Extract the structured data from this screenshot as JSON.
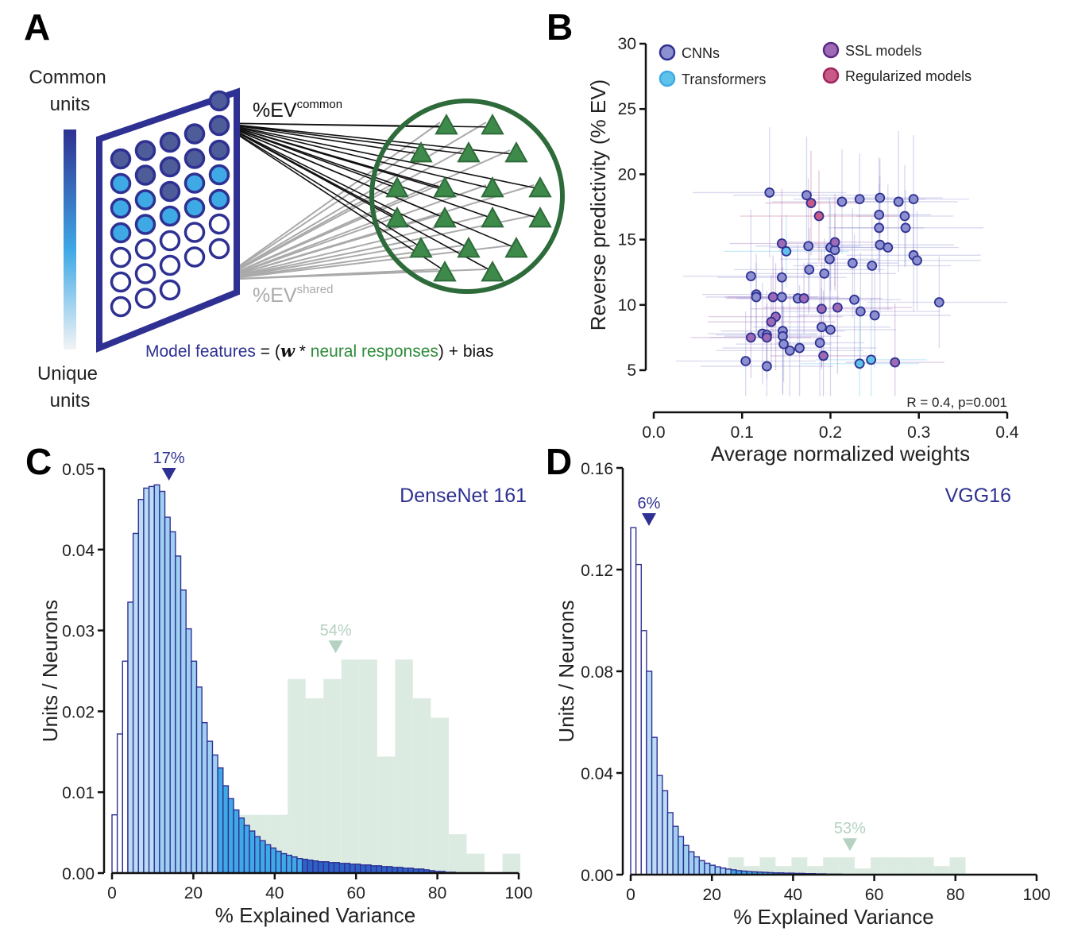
{
  "colors": {
    "navy": "#2e3192",
    "blue_dark": "#2f62c6",
    "blue_mid": "#3fa9e6",
    "blue_light": "#bcdcf6",
    "green": "#2e6b3a",
    "green_fill": "#d6e8dc",
    "green_text": "#b5d2c0",
    "cnn": "#8c8fd0",
    "transformer": "#5fc2ea",
    "ssl": "#9e6ab6",
    "regularized": "#c75a86",
    "gray_line": "#aaaaaa"
  },
  "panel_a": {
    "label": "A",
    "top_label": [
      "Common",
      "units"
    ],
    "bottom_label": [
      "Unique",
      "units"
    ],
    "ev_common": "%EV",
    "ev_common_sup": "common",
    "ev_shared": "%EV",
    "ev_shared_sup": "shared",
    "formula": {
      "model_features": "Model features",
      "equals": " = (",
      "w": "w",
      "star": " * ",
      "neural": "neural responses",
      "rest": ") + bias"
    },
    "unit_grid": [
      [
        "none",
        "none",
        "none",
        "none",
        "dark"
      ],
      [
        "dark",
        "dark",
        "dark",
        "dark",
        "dark"
      ],
      [
        "mid",
        "dark",
        "dark",
        "dark",
        "dark"
      ],
      [
        "mid",
        "mid",
        "dark",
        "mid",
        "mid"
      ],
      [
        "mid",
        "mid",
        "mid",
        "mid",
        "mid"
      ],
      [
        "white",
        "white",
        "white",
        "white",
        "white"
      ],
      [
        "white",
        "white",
        "white",
        "white",
        "white"
      ],
      [
        "white",
        "white",
        "white",
        "none",
        "none"
      ]
    ]
  },
  "chart_data": [
    {
      "panel": "B",
      "type": "scatter",
      "title": "",
      "xlabel": "Average normalized weights",
      "ylabel": "Reverse predictivity (% EV)",
      "xlim": [
        0,
        0.4
      ],
      "ylim": [
        5,
        30
      ],
      "xticks": [
        "0.0",
        "0.1",
        "0.2",
        "0.3",
        "0.4"
      ],
      "yticks": [
        "5",
        "10",
        "15",
        "20",
        "25",
        "30"
      ],
      "annotation": "R = 0.4, p=0.001",
      "legend": [
        {
          "key": "cnn",
          "label": "CNNs"
        },
        {
          "key": "transformer",
          "label": "Transformers"
        },
        {
          "key": "ssl",
          "label": "SSL models"
        },
        {
          "key": "regularized",
          "label": "Regularized models"
        }
      ],
      "series": [
        {
          "name": "CNNs",
          "key": "cnn",
          "points": [
            [
              0.131,
              18.6
            ],
            [
              0.173,
              18.4
            ],
            [
              0.213,
              17.9
            ],
            [
              0.233,
              18.1
            ],
            [
              0.256,
              18.2
            ],
            [
              0.277,
              17.9
            ],
            [
              0.294,
              18.1
            ],
            [
              0.255,
              16.9
            ],
            [
              0.284,
              16.8
            ],
            [
              0.255,
              15.9
            ],
            [
              0.285,
              15.9
            ],
            [
              0.256,
              14.6
            ],
            [
              0.265,
              14.4
            ],
            [
              0.294,
              13.8
            ],
            [
              0.298,
              13.4
            ],
            [
              0.2,
              14.4
            ],
            [
              0.205,
              14.2
            ],
            [
              0.175,
              14.5
            ],
            [
              0.199,
              13.5
            ],
            [
              0.225,
              13.2
            ],
            [
              0.247,
              13.0
            ],
            [
              0.176,
              12.7
            ],
            [
              0.193,
              12.4
            ],
            [
              0.11,
              12.2
            ],
            [
              0.145,
              12.1
            ],
            [
              0.163,
              10.5
            ],
            [
              0.145,
              10.6
            ],
            [
              0.116,
              10.8
            ],
            [
              0.116,
              10.6
            ],
            [
              0.227,
              10.4
            ],
            [
              0.234,
              9.5
            ],
            [
              0.25,
              9.2
            ],
            [
              0.323,
              10.2
            ],
            [
              0.19,
              8.3
            ],
            [
              0.2,
              8.1
            ],
            [
              0.146,
              8.0
            ],
            [
              0.146,
              7.6
            ],
            [
              0.123,
              7.8
            ],
            [
              0.128,
              7.7
            ],
            [
              0.147,
              7.0
            ],
            [
              0.188,
              7.1
            ],
            [
              0.165,
              6.7
            ],
            [
              0.154,
              6.5
            ],
            [
              0.104,
              5.7
            ],
            [
              0.128,
              5.3
            ]
          ]
        },
        {
          "name": "Transformers",
          "key": "transformer",
          "points": [
            [
              0.15,
              14.1
            ],
            [
              0.233,
              5.5
            ],
            [
              0.246,
              5.8
            ]
          ]
        },
        {
          "name": "SSL models",
          "key": "ssl",
          "points": [
            [
              0.145,
              14.7
            ],
            [
              0.205,
              14.8
            ],
            [
              0.135,
              10.6
            ],
            [
              0.17,
              10.5
            ],
            [
              0.208,
              9.8
            ],
            [
              0.19,
              9.7
            ],
            [
              0.138,
              9.1
            ],
            [
              0.133,
              8.7
            ],
            [
              0.11,
              7.5
            ],
            [
              0.128,
              7.5
            ],
            [
              0.192,
              6.1
            ],
            [
              0.273,
              5.6
            ]
          ]
        },
        {
          "name": "Regularized models",
          "key": "regularized",
          "points": [
            [
              0.178,
              17.8
            ],
            [
              0.187,
              16.8
            ]
          ]
        }
      ]
    },
    {
      "panel": "C",
      "type": "bar",
      "title": "DenseNet 161",
      "xlabel": "% Explained Variance",
      "ylabel": "Units / Neurons",
      "xlim": [
        0,
        100
      ],
      "ylim": [
        0,
        0.05
      ],
      "xticks": [
        "0",
        "20",
        "40",
        "60",
        "80",
        "100"
      ],
      "yticks": [
        "0.00",
        "0.01",
        "0.02",
        "0.03",
        "0.04",
        "0.05"
      ],
      "series": [
        {
          "name": "Model units",
          "bin_start": 0,
          "bin_width": 1.3,
          "values": [
            0.0072,
            0.0172,
            0.0262,
            0.0335,
            0.042,
            0.0462,
            0.0476,
            0.0478,
            0.048,
            0.0472,
            0.044,
            0.0422,
            0.0392,
            0.035,
            0.0302,
            0.0262,
            0.023,
            0.0186,
            0.0163,
            0.0146,
            0.013,
            0.0108,
            0.0092,
            0.0078,
            0.0068,
            0.0059,
            0.0052,
            0.0045,
            0.004,
            0.0035,
            0.0031,
            0.0027,
            0.0024,
            0.0022,
            0.002,
            0.0018,
            0.0017,
            0.0016,
            0.0015,
            0.0014,
            0.0014,
            0.0013,
            0.0013,
            0.0012,
            0.0012,
            0.0011,
            0.0011,
            0.001,
            0.001,
            0.0009,
            0.0009,
            0.0008,
            0.0008,
            0.0007,
            0.0007,
            0.0006,
            0.0006,
            0.0005,
            0.0005,
            0.0004,
            0.0003,
            0.0002,
            0.0002,
            0.0001,
            0.0001
          ]
        },
        {
          "name": "Neurons",
          "bin_start": 30,
          "bin_width": 4.4,
          "values": [
            0.0072,
            0.0072,
            0.0072,
            0.024,
            0.0216,
            0.024,
            0.0264,
            0.0264,
            0.0144,
            0.0264,
            0.0216,
            0.0192,
            0.0048,
            0.0024,
            0.0,
            0.0024
          ]
        }
      ],
      "annotations": [
        {
          "text": "17%",
          "x": 14,
          "color": "navy"
        },
        {
          "text": "54%",
          "x": 55,
          "color": "green"
        }
      ]
    },
    {
      "panel": "D",
      "type": "bar",
      "title": "VGG16",
      "xlabel": "% Explained Variance",
      "ylabel": "Units / Neurons",
      "xlim": [
        0,
        100
      ],
      "ylim": [
        0,
        0.16
      ],
      "xticks": [
        "0",
        "20",
        "40",
        "60",
        "80",
        "100"
      ],
      "yticks": [
        "0.00",
        "0.04",
        "0.08",
        "0.12",
        "0.16"
      ],
      "series": [
        {
          "name": "Model units",
          "bin_start": 0,
          "bin_width": 1.3,
          "values": [
            0.1365,
            0.122,
            0.096,
            0.08,
            0.054,
            0.039,
            0.033,
            0.0244,
            0.019,
            0.015,
            0.0115,
            0.009,
            0.007,
            0.0055,
            0.0045,
            0.0037,
            0.0031,
            0.0026,
            0.0022,
            0.0019,
            0.0016,
            0.0014,
            0.0012,
            0.0011,
            0.001,
            0.0009,
            0.0008,
            0.0007,
            0.0007,
            0.0006,
            0.0006,
            0.0005,
            0.0005,
            0.0004,
            0.0004,
            0.0003,
            0.0003,
            0.0002,
            0.0002,
            0.0002,
            0.0001,
            0.0001,
            0.0001,
            0.0001,
            0.0001,
            0.0001,
            0.0001,
            0.0001,
            0.0001,
            0.0001,
            0.0001,
            0.0001,
            0.0001,
            0.0001,
            0.0001,
            0.0001,
            0.0001,
            0.0001,
            0.0001,
            0.0001
          ]
        },
        {
          "name": "Neurons",
          "bin_start": 24,
          "bin_width": 3.9,
          "values": [
            0.0068,
            0.0034,
            0.0068,
            0.0034,
            0.0068,
            0.0034,
            0.0068,
            0.0068,
            0.0024,
            0.0068,
            0.0068,
            0.0068,
            0.0068,
            0.0034,
            0.0068
          ]
        }
      ],
      "annotations": [
        {
          "text": "6%",
          "x": 4.5,
          "color": "navy"
        },
        {
          "text": "53%",
          "x": 54,
          "color": "green"
        }
      ]
    }
  ]
}
